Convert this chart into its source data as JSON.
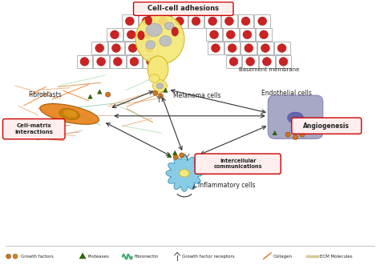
{
  "bg_color": "#ffffff",
  "labels": {
    "cell_cell": "Cell-cell adhesions",
    "basement_membrane": "Basement membrane",
    "melanoma_cells": "Melanoma cells",
    "fibroblasts": "Fibroblasts",
    "cell_matrix": "Cell-matrix\ninteractions",
    "endothelial": "Endothelial cells",
    "angiogenesis": "Angiogenesis",
    "inflammatory": "Inflammatory cells",
    "intercellular": "Intercellular\ncommunications"
  },
  "arrow_color": "#333333",
  "melanoma_color": "#f5e87a",
  "fibroblast_color": "#e8821a",
  "fibroblast_nucleus_color": "#8b6914",
  "endothelial_color": "#9b9bbf",
  "inflammatory_color": "#7ec8e3",
  "tissue_cell_nucleus": "#cc2222",
  "growth_factor_color": "#cc7722",
  "protease_color": "#2d6a00",
  "fibronectin_color": "#3aaa6e",
  "collagen_color": "#cc7722",
  "ecm_color": "#d4c89a"
}
